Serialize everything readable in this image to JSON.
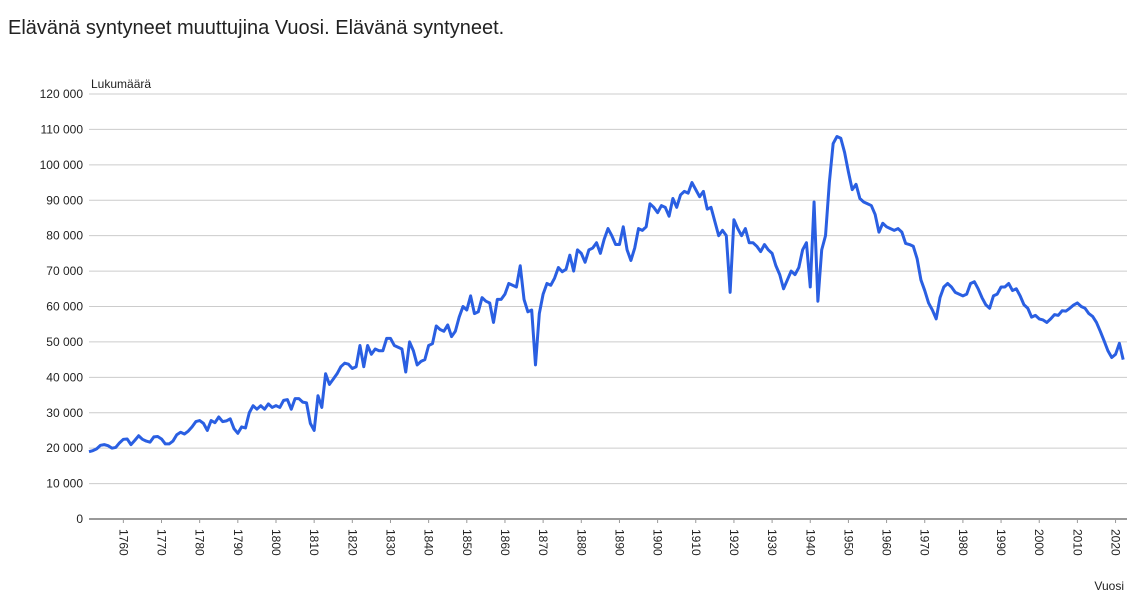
{
  "chart_data": {
    "type": "line",
    "title": "Elävänä syntyneet muuttujina Vuosi. Elävänä syntyneet.",
    "ylabel": "Lukumäärä",
    "xlabel": "Vuosi",
    "x": [
      1751,
      1752,
      1753,
      1754,
      1755,
      1756,
      1757,
      1758,
      1759,
      1760,
      1761,
      1762,
      1763,
      1764,
      1765,
      1766,
      1767,
      1768,
      1769,
      1770,
      1771,
      1772,
      1773,
      1774,
      1775,
      1776,
      1777,
      1778,
      1779,
      1780,
      1781,
      1782,
      1783,
      1784,
      1785,
      1786,
      1787,
      1788,
      1789,
      1790,
      1791,
      1792,
      1793,
      1794,
      1795,
      1796,
      1797,
      1798,
      1799,
      1800,
      1801,
      1802,
      1803,
      1804,
      1805,
      1806,
      1807,
      1808,
      1809,
      1810,
      1811,
      1812,
      1813,
      1814,
      1815,
      1816,
      1817,
      1818,
      1819,
      1820,
      1821,
      1822,
      1823,
      1824,
      1825,
      1826,
      1827,
      1828,
      1829,
      1830,
      1831,
      1832,
      1833,
      1834,
      1835,
      1836,
      1837,
      1838,
      1839,
      1840,
      1841,
      1842,
      1843,
      1844,
      1845,
      1846,
      1847,
      1848,
      1849,
      1850,
      1851,
      1852,
      1853,
      1854,
      1855,
      1856,
      1857,
      1858,
      1859,
      1860,
      1861,
      1862,
      1863,
      1864,
      1865,
      1866,
      1867,
      1868,
      1869,
      1870,
      1871,
      1872,
      1873,
      1874,
      1875,
      1876,
      1877,
      1878,
      1879,
      1880,
      1881,
      1882,
      1883,
      1884,
      1885,
      1886,
      1887,
      1888,
      1889,
      1890,
      1891,
      1892,
      1893,
      1894,
      1895,
      1896,
      1897,
      1898,
      1899,
      1900,
      1901,
      1902,
      1903,
      1904,
      1905,
      1906,
      1907,
      1908,
      1909,
      1910,
      1911,
      1912,
      1913,
      1914,
      1915,
      1916,
      1917,
      1918,
      1919,
      1920,
      1921,
      1922,
      1923,
      1924,
      1925,
      1926,
      1927,
      1928,
      1929,
      1930,
      1931,
      1932,
      1933,
      1934,
      1935,
      1936,
      1937,
      1938,
      1939,
      1940,
      1941,
      1942,
      1943,
      1944,
      1945,
      1946,
      1947,
      1948,
      1949,
      1950,
      1951,
      1952,
      1953,
      1954,
      1955,
      1956,
      1957,
      1958,
      1959,
      1960,
      1961,
      1962,
      1963,
      1964,
      1965,
      1966,
      1967,
      1968,
      1969,
      1970,
      1971,
      1972,
      1973,
      1974,
      1975,
      1976,
      1977,
      1978,
      1979,
      1980,
      1981,
      1982,
      1983,
      1984,
      1985,
      1986,
      1987,
      1988,
      1989,
      1990,
      1991,
      1992,
      1993,
      1994,
      1995,
      1996,
      1997,
      1998,
      1999,
      2000,
      2001,
      2002,
      2003,
      2004,
      2005,
      2006,
      2007,
      2008,
      2009,
      2010,
      2011,
      2012,
      2013,
      2014,
      2015,
      2016,
      2017,
      2018,
      2019,
      2020,
      2021,
      2022
    ],
    "series": [
      {
        "name": "Elävänä syntyneet",
        "color": "#2a5fe2",
        "values": [
          19000,
          19300,
          19800,
          20800,
          21000,
          20700,
          20000,
          20200,
          21500,
          22500,
          22600,
          21000,
          22200,
          23500,
          22500,
          22000,
          21700,
          23200,
          23300,
          22600,
          21200,
          21200,
          22000,
          23800,
          24500,
          24000,
          24800,
          26000,
          27500,
          27800,
          27000,
          25000,
          27800,
          27200,
          28800,
          27500,
          27700,
          28300,
          25500,
          24200,
          26000,
          25700,
          30000,
          32000,
          31000,
          32000,
          31000,
          32500,
          31500,
          32000,
          31500,
          33500,
          33700,
          31000,
          34000,
          34000,
          33000,
          32800,
          27000,
          25000,
          34800,
          31500,
          41000,
          38000,
          39500,
          41000,
          43000,
          44000,
          43700,
          42500,
          43000,
          49000,
          43000,
          49000,
          46500,
          48000,
          47500,
          47500,
          51000,
          51000,
          49000,
          48500,
          48000,
          41500,
          50000,
          47500,
          43500,
          44500,
          45000,
          49000,
          49500,
          54500,
          53500,
          53000,
          54800,
          51500,
          53000,
          57000,
          60000,
          59000,
          63000,
          58000,
          58500,
          62500,
          61500,
          61000,
          55500,
          62000,
          62000,
          63500,
          66500,
          66000,
          65500,
          71500,
          62000,
          58500,
          59000,
          43500,
          58000,
          63500,
          66500,
          66000,
          68000,
          71000,
          69800,
          70500,
          74500,
          70000,
          76000,
          75000,
          72500,
          76000,
          76500,
          78000,
          75000,
          79000,
          82000,
          80000,
          77500,
          77500,
          82500,
          76000,
          73000,
          76500,
          82000,
          81500,
          82500,
          89000,
          88000,
          86500,
          88500,
          88000,
          85500,
          90500,
          88000,
          91500,
          92500,
          92000,
          95000,
          93000,
          91000,
          92500,
          87500,
          88000,
          84000,
          80000,
          81500,
          80000,
          64000,
          84500,
          82000,
          80000,
          82000,
          78000,
          78000,
          77000,
          75500,
          77500,
          76000,
          75000,
          71500,
          69000,
          65000,
          67500,
          70000,
          69000,
          71000,
          76000,
          78000,
          65500,
          89500,
          61500,
          76000,
          80000,
          95000,
          106000,
          108000,
          107500,
          103500,
          98000,
          93000,
          94500,
          90500,
          89500,
          89000,
          88500,
          86000,
          81000,
          83500,
          82500,
          82000,
          81500,
          82000,
          81000,
          77800,
          77500,
          77000,
          73500,
          67500,
          64500,
          61000,
          59000,
          56500,
          62500,
          65500,
          66500,
          65500,
          64000,
          63500,
          63000,
          63500,
          66500,
          67000,
          65000,
          62500,
          60500,
          59500,
          63000,
          63500,
          65500,
          65500,
          66500,
          64500,
          65000,
          63000,
          60500,
          59500,
          57000,
          57500,
          56500,
          56200,
          55500,
          56500,
          57700,
          57500,
          58800,
          58700,
          59500,
          60400,
          61000,
          60000,
          59500,
          58000,
          57200,
          55500,
          53000,
          50300,
          47500,
          45600,
          46500,
          49600,
          45000
        ]
      }
    ],
    "xlim": [
      1751,
      2023
    ],
    "xticks": [
      1760,
      1770,
      1780,
      1790,
      1800,
      1810,
      1820,
      1830,
      1840,
      1850,
      1860,
      1870,
      1880,
      1890,
      1900,
      1910,
      1920,
      1930,
      1940,
      1950,
      1960,
      1970,
      1980,
      1990,
      2000,
      2010,
      2020
    ],
    "ylim": [
      0,
      120000
    ],
    "yticks": [
      0,
      {
        "value": 10000,
        "label": "10 000"
      },
      {
        "value": 20000,
        "label": "20 000"
      },
      {
        "value": 30000,
        "label": "30 000"
      },
      {
        "value": 40000,
        "label": "40 000"
      },
      {
        "value": 50000,
        "label": "50 000"
      },
      {
        "value": 60000,
        "label": "60 000"
      },
      {
        "value": 70000,
        "label": "70 000"
      },
      {
        "value": 80000,
        "label": "80 000"
      },
      {
        "value": 90000,
        "label": "90 000"
      },
      {
        "value": 100000,
        "label": "100 000"
      },
      {
        "value": 110000,
        "label": "110 000"
      },
      {
        "value": 120000,
        "label": "120 000"
      }
    ],
    "grid": true
  }
}
